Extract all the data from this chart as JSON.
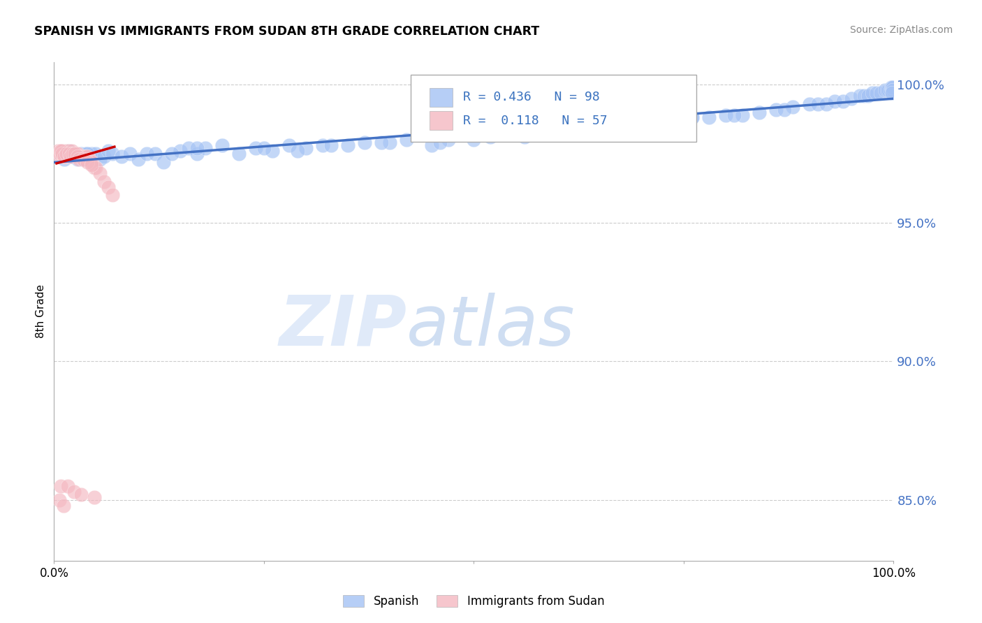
{
  "title": "SPANISH VS IMMIGRANTS FROM SUDAN 8TH GRADE CORRELATION CHART",
  "source": "Source: ZipAtlas.com",
  "ylabel": "8th Grade",
  "xlim": [
    0.0,
    1.0
  ],
  "ylim": [
    0.828,
    1.008
  ],
  "yticks": [
    0.85,
    0.9,
    0.95,
    1.0
  ],
  "ytick_labels": [
    "85.0%",
    "90.0%",
    "95.0%",
    "100.0%"
  ],
  "blue_R": 0.436,
  "blue_N": 98,
  "pink_R": 0.118,
  "pink_N": 57,
  "blue_color": "#a4c2f4",
  "pink_color": "#f4b8c1",
  "blue_line_color": "#4472c4",
  "pink_line_color": "#cc0000",
  "legend_label_blue": "Spanish",
  "legend_label_pink": "Immigrants from Sudan",
  "blue_scatter_x": [
    0.008,
    0.01,
    0.012,
    0.015,
    0.018,
    0.022,
    0.025,
    0.028,
    0.03,
    0.032,
    0.035,
    0.038,
    0.042,
    0.045,
    0.05,
    0.055,
    0.06,
    0.065,
    0.07,
    0.08,
    0.09,
    0.1,
    0.11,
    0.12,
    0.13,
    0.15,
    0.16,
    0.17,
    0.18,
    0.2,
    0.22,
    0.24,
    0.26,
    0.28,
    0.3,
    0.32,
    0.35,
    0.37,
    0.4,
    0.42,
    0.45,
    0.47,
    0.5,
    0.52,
    0.54,
    0.56,
    0.58,
    0.6,
    0.62,
    0.64,
    0.66,
    0.68,
    0.7,
    0.72,
    0.74,
    0.76,
    0.78,
    0.8,
    0.82,
    0.84,
    0.86,
    0.88,
    0.9,
    0.91,
    0.92,
    0.93,
    0.94,
    0.95,
    0.96,
    0.965,
    0.97,
    0.975,
    0.98,
    0.985,
    0.99,
    0.992,
    0.994,
    0.996,
    0.997,
    0.998,
    0.999,
    0.999,
    0.998,
    0.14,
    0.46,
    0.39,
    0.29,
    0.61,
    0.71,
    0.81,
    0.17,
    0.25,
    0.33,
    0.59,
    0.76,
    0.87,
    0.02,
    0.04
  ],
  "blue_scatter_y": [
    0.974,
    0.975,
    0.973,
    0.975,
    0.976,
    0.974,
    0.975,
    0.973,
    0.974,
    0.975,
    0.973,
    0.975,
    0.974,
    0.975,
    0.975,
    0.973,
    0.974,
    0.976,
    0.975,
    0.974,
    0.975,
    0.973,
    0.975,
    0.975,
    0.972,
    0.976,
    0.977,
    0.975,
    0.977,
    0.978,
    0.975,
    0.977,
    0.976,
    0.978,
    0.977,
    0.978,
    0.978,
    0.979,
    0.979,
    0.98,
    0.978,
    0.98,
    0.98,
    0.981,
    0.982,
    0.981,
    0.982,
    0.983,
    0.983,
    0.984,
    0.984,
    0.985,
    0.986,
    0.986,
    0.987,
    0.988,
    0.988,
    0.989,
    0.989,
    0.99,
    0.991,
    0.992,
    0.993,
    0.993,
    0.993,
    0.994,
    0.994,
    0.995,
    0.996,
    0.996,
    0.996,
    0.997,
    0.997,
    0.997,
    0.998,
    0.998,
    0.998,
    0.998,
    0.999,
    0.999,
    0.999,
    0.998,
    0.997,
    0.975,
    0.979,
    0.979,
    0.976,
    0.983,
    0.986,
    0.989,
    0.977,
    0.977,
    0.978,
    0.982,
    0.988,
    0.991,
    0.974,
    0.975
  ],
  "pink_scatter_x": [
    0.004,
    0.005,
    0.006,
    0.007,
    0.008,
    0.009,
    0.01,
    0.011,
    0.012,
    0.013,
    0.014,
    0.015,
    0.016,
    0.017,
    0.018,
    0.019,
    0.02,
    0.021,
    0.022,
    0.023,
    0.024,
    0.025,
    0.026,
    0.028,
    0.03,
    0.032,
    0.035,
    0.038,
    0.04,
    0.042,
    0.045,
    0.048,
    0.05,
    0.055,
    0.06,
    0.065,
    0.07,
    0.008,
    0.01,
    0.012,
    0.015,
    0.018,
    0.02,
    0.022,
    0.025,
    0.028,
    0.03,
    0.035,
    0.04,
    0.045,
    0.006,
    0.008,
    0.011,
    0.016,
    0.024,
    0.032,
    0.048
  ],
  "pink_scatter_y": [
    0.975,
    0.976,
    0.975,
    0.975,
    0.976,
    0.975,
    0.976,
    0.975,
    0.974,
    0.975,
    0.975,
    0.976,
    0.975,
    0.975,
    0.976,
    0.975,
    0.975,
    0.976,
    0.975,
    0.975,
    0.975,
    0.975,
    0.975,
    0.975,
    0.974,
    0.974,
    0.974,
    0.974,
    0.974,
    0.973,
    0.972,
    0.97,
    0.97,
    0.968,
    0.965,
    0.963,
    0.96,
    0.976,
    0.975,
    0.974,
    0.975,
    0.975,
    0.974,
    0.975,
    0.975,
    0.974,
    0.973,
    0.973,
    0.972,
    0.971,
    0.85,
    0.855,
    0.848,
    0.855,
    0.853,
    0.852,
    0.851
  ],
  "pink_trendline_x": [
    0.003,
    0.072
  ],
  "pink_trendline_y": [
    0.9715,
    0.9775
  ]
}
